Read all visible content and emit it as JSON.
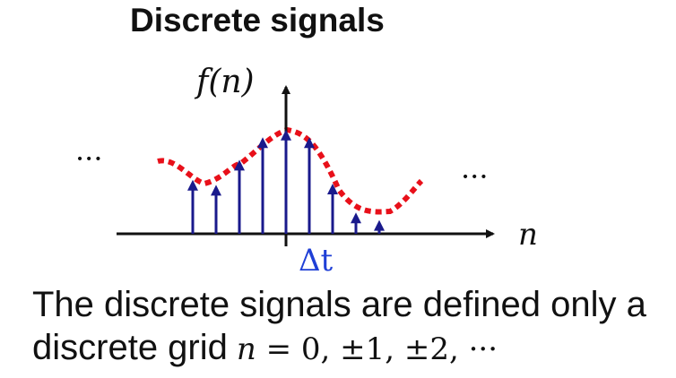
{
  "title": "Discrete signals",
  "y_axis_label": "f(n)",
  "x_axis_label": "n",
  "ellipsis": "···",
  "step_label": "Δt",
  "colors": {
    "stem": "#1a1a8c",
    "curve": "#e8101a",
    "step_label": "#1f3fd6",
    "axis": "#111111"
  },
  "caption": {
    "line1": "The discrete signals are defined only a",
    "line2_text": "discrete grid",
    "line2_var": "n",
    "line2_expr": " = 0, ±1, ±2, ···"
  },
  "samples": {
    "n": [
      -4,
      -3,
      -2,
      -1,
      0,
      1,
      2,
      3,
      4
    ],
    "f": [
      0.43,
      0.39,
      0.59,
      0.77,
      0.83,
      0.77,
      0.4,
      0.17,
      0.11
    ]
  }
}
